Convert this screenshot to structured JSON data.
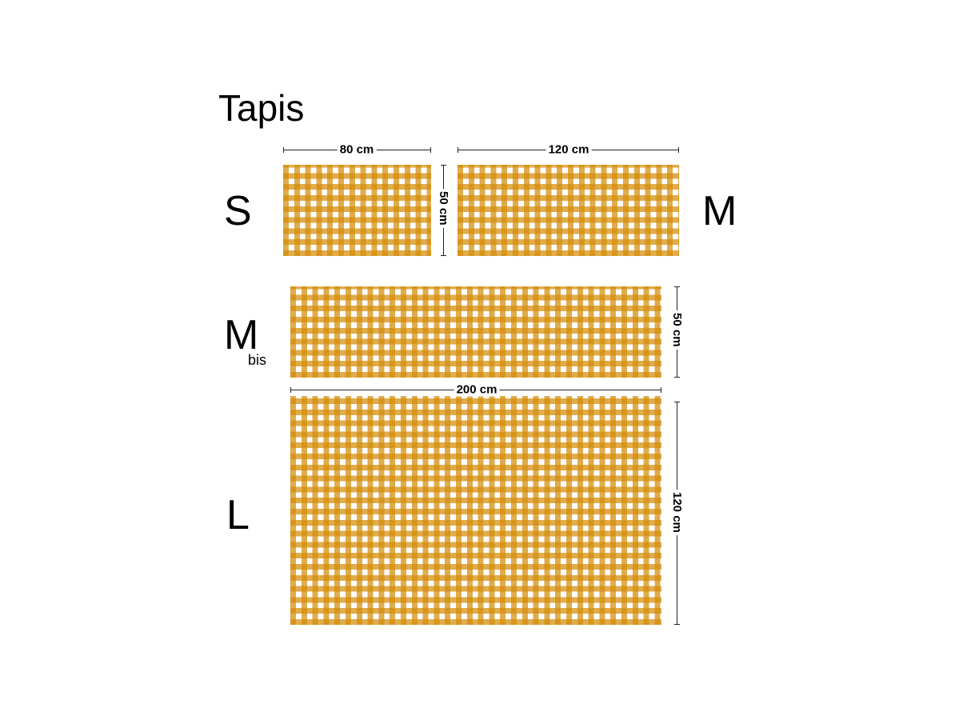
{
  "title": "Tapis",
  "pattern_colors": {
    "dark": "#c8860a",
    "mid": "#e8b040",
    "light": "#ffffff"
  },
  "sizes": [
    {
      "label": "S",
      "width": "80 cm",
      "height": "50 cm"
    },
    {
      "label": "M",
      "width": "120 cm",
      "height": "50 cm"
    },
    {
      "label": "M",
      "sub": "bis",
      "height": "50 cm"
    },
    {
      "label": "L",
      "width": "200 cm",
      "height": "120 cm"
    }
  ]
}
